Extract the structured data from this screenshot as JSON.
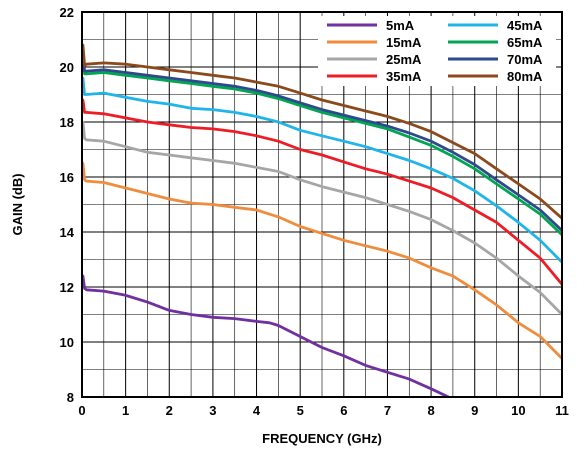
{
  "chart_data": {
    "type": "line",
    "xlabel": "FREQUENCY (GHz)",
    "ylabel": "GAIN (dB)",
    "xlim": [
      0,
      11
    ],
    "ylim": [
      8,
      22
    ],
    "xticks": [
      "0",
      "1",
      "2",
      "3",
      "4",
      "5",
      "6",
      "7",
      "8",
      "9",
      "10",
      "11"
    ],
    "yticks": [
      "8",
      "10",
      "12",
      "14",
      "16",
      "18",
      "20",
      "22"
    ],
    "grid": true,
    "legend_position": "top-right",
    "series": [
      {
        "name": "5mA",
        "color": "#7030a0",
        "x": [
          0,
          0.02,
          0.06,
          0.1,
          0.5,
          1,
          1.5,
          2,
          2.5,
          3,
          3.5,
          4,
          4.3,
          4.5,
          5,
          5.5,
          6,
          6.5,
          7,
          7.5,
          8,
          8.4
        ],
        "y": [
          12.2,
          12.4,
          11.95,
          11.9,
          11.85,
          11.7,
          11.45,
          11.15,
          11.0,
          10.9,
          10.85,
          10.75,
          10.7,
          10.6,
          10.2,
          9.8,
          9.5,
          9.15,
          8.9,
          8.65,
          8.3,
          8.0
        ]
      },
      {
        "name": "15mA",
        "color": "#f08c3c",
        "x": [
          0,
          0.02,
          0.06,
          0.1,
          0.5,
          1,
          1.5,
          2,
          2.5,
          3,
          3.5,
          4,
          4.5,
          5,
          5.5,
          6,
          6.5,
          7,
          7.5,
          8,
          8.5,
          9,
          9.5,
          10,
          10.5,
          11
        ],
        "y": [
          16.3,
          16.5,
          15.9,
          15.85,
          15.8,
          15.6,
          15.4,
          15.2,
          15.05,
          15.0,
          14.9,
          14.8,
          14.55,
          14.2,
          13.95,
          13.7,
          13.5,
          13.3,
          13.05,
          12.7,
          12.4,
          11.9,
          11.35,
          10.7,
          10.2,
          9.4
        ]
      },
      {
        "name": "25mA",
        "color": "#a6a6a6",
        "x": [
          0,
          0.02,
          0.06,
          0.1,
          0.5,
          1,
          1.5,
          2,
          2.5,
          3,
          3.5,
          4,
          4.5,
          5,
          5.5,
          6,
          6.5,
          7,
          7.5,
          8,
          8.5,
          9,
          9.5,
          10,
          10.5,
          11
        ],
        "y": [
          17.8,
          18.0,
          17.4,
          17.35,
          17.3,
          17.1,
          16.9,
          16.8,
          16.7,
          16.6,
          16.5,
          16.35,
          16.2,
          15.9,
          15.65,
          15.45,
          15.25,
          15.0,
          14.75,
          14.45,
          14.05,
          13.6,
          13.05,
          12.4,
          11.8,
          11.0
        ]
      },
      {
        "name": "35mA",
        "color": "#ee1c25",
        "x": [
          0,
          0.02,
          0.06,
          0.1,
          0.5,
          1,
          1.5,
          2,
          2.5,
          3,
          3.5,
          4,
          4.5,
          5,
          5.5,
          6,
          6.5,
          7,
          7.5,
          8,
          8.5,
          9,
          9.5,
          10,
          10.5,
          11
        ],
        "y": [
          18.5,
          18.8,
          18.35,
          18.35,
          18.3,
          18.15,
          18.0,
          17.9,
          17.8,
          17.75,
          17.65,
          17.5,
          17.3,
          17.0,
          16.8,
          16.55,
          16.3,
          16.1,
          15.85,
          15.6,
          15.25,
          14.8,
          14.35,
          13.7,
          13.05,
          12.1
        ]
      },
      {
        "name": "45mA",
        "color": "#1fb5ea",
        "x": [
          0,
          0.02,
          0.06,
          0.1,
          0.5,
          1,
          1.5,
          2,
          2.5,
          3,
          3.5,
          4,
          4.5,
          5,
          5.5,
          6,
          6.5,
          7,
          7.5,
          8,
          8.5,
          9,
          9.5,
          10,
          10.5,
          11
        ],
        "y": [
          19.4,
          19.6,
          19.0,
          19.0,
          19.05,
          18.9,
          18.75,
          18.65,
          18.5,
          18.45,
          18.35,
          18.2,
          18.0,
          17.7,
          17.5,
          17.3,
          17.1,
          16.85,
          16.6,
          16.3,
          15.95,
          15.5,
          14.95,
          14.35,
          13.7,
          12.9
        ]
      },
      {
        "name": "65mA",
        "color": "#00a651",
        "x": [
          0,
          0.02,
          0.06,
          0.1,
          0.5,
          1,
          1.5,
          2,
          2.5,
          3,
          3.5,
          4,
          4.5,
          5,
          5.5,
          6,
          6.5,
          7,
          7.5,
          8,
          8.5,
          9,
          9.5,
          10,
          10.5,
          11
        ],
        "y": [
          20.2,
          20.4,
          19.75,
          19.75,
          19.8,
          19.7,
          19.6,
          19.5,
          19.4,
          19.3,
          19.2,
          19.05,
          18.85,
          18.6,
          18.35,
          18.15,
          17.95,
          17.75,
          17.45,
          17.15,
          16.75,
          16.3,
          15.75,
          15.2,
          14.65,
          13.9
        ]
      },
      {
        "name": "70mA",
        "color": "#2e4a8c",
        "x": [
          0,
          0.02,
          0.06,
          0.1,
          0.5,
          1,
          1.5,
          2,
          2.5,
          3,
          3.5,
          4,
          4.5,
          5,
          5.5,
          6,
          6.5,
          7,
          7.5,
          8,
          8.5,
          9,
          9.5,
          10,
          10.5,
          11
        ],
        "y": [
          20.3,
          20.5,
          19.85,
          19.85,
          19.9,
          19.8,
          19.7,
          19.6,
          19.5,
          19.4,
          19.3,
          19.15,
          18.95,
          18.7,
          18.45,
          18.25,
          18.05,
          17.85,
          17.6,
          17.3,
          16.9,
          16.45,
          15.9,
          15.35,
          14.8,
          14.05
        ]
      },
      {
        "name": "80mA",
        "color": "#8b4a1c",
        "x": [
          0,
          0.02,
          0.06,
          0.1,
          0.5,
          1,
          1.5,
          2,
          2.5,
          3,
          3.5,
          4,
          4.5,
          5,
          5.5,
          6,
          6.5,
          7,
          7.5,
          8,
          8.5,
          9,
          9.5,
          10,
          10.5,
          11
        ],
        "y": [
          20.6,
          20.8,
          20.05,
          20.1,
          20.15,
          20.1,
          20.0,
          19.9,
          19.8,
          19.7,
          19.6,
          19.45,
          19.3,
          19.05,
          18.8,
          18.6,
          18.4,
          18.2,
          17.95,
          17.65,
          17.25,
          16.85,
          16.3,
          15.75,
          15.2,
          14.5
        ]
      }
    ]
  }
}
